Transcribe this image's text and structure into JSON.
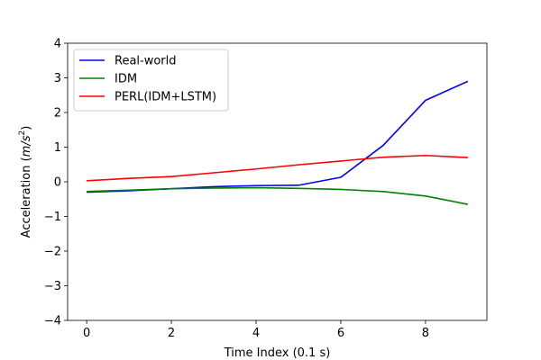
{
  "chart_data": {
    "type": "line",
    "title": "",
    "xlabel": "Time Index (0.1 s)",
    "ylabel": "Acceleration ($m/s^2$)",
    "ylabel_parts": {
      "prefix": "Acceleration (",
      "var": "m",
      "sep": "/",
      "var2": "s",
      "sup": "2",
      "suffix": ")"
    },
    "xlim": [
      -0.45,
      9.45
    ],
    "ylim": [
      -4,
      4
    ],
    "xticks": [
      0,
      2,
      4,
      6,
      8
    ],
    "yticks": [
      -4,
      -3,
      -2,
      -1,
      0,
      1,
      2,
      3,
      4
    ],
    "ytick_labels": [
      "−4",
      "−3",
      "−2",
      "−1",
      "0",
      "1",
      "2",
      "3",
      "4"
    ],
    "grid": false,
    "legend_position": "top-left",
    "x": [
      0,
      1,
      2,
      3,
      4,
      5,
      6,
      7,
      8,
      9
    ],
    "series": [
      {
        "name": "Real-world",
        "color": "#0000ff",
        "values": [
          -0.3,
          -0.26,
          -0.2,
          -0.14,
          -0.11,
          -0.1,
          0.13,
          1.05,
          2.35,
          2.9
        ]
      },
      {
        "name": "IDM",
        "color": "#008000",
        "values": [
          -0.28,
          -0.24,
          -0.2,
          -0.18,
          -0.17,
          -0.19,
          -0.22,
          -0.28,
          -0.41,
          -0.65
        ]
      },
      {
        "name": "PERL(IDM+LSTM)",
        "color": "#ff0000",
        "values": [
          0.03,
          0.1,
          0.15,
          0.26,
          0.37,
          0.49,
          0.6,
          0.71,
          0.76,
          0.7
        ]
      }
    ]
  }
}
